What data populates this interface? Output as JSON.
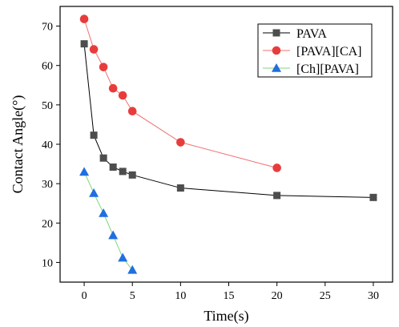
{
  "chart_data": {
    "type": "line",
    "xlabel": "Time(s)",
    "ylabel": "Contact Angle(°)",
    "xlim": [
      -2.5,
      32
    ],
    "ylim": [
      5,
      75
    ],
    "xticks": [
      0,
      5,
      10,
      15,
      20,
      25,
      30
    ],
    "yticks": [
      10,
      20,
      30,
      40,
      50,
      60,
      70
    ],
    "legend_position": "top-right",
    "series": [
      {
        "name": "PAVA",
        "marker": "square",
        "color": "#4d4d4d",
        "line_color": "#000000",
        "x": [
          0,
          1,
          2,
          3,
          4,
          5,
          10,
          20,
          30
        ],
        "y": [
          65.5,
          42.3,
          36.5,
          34.2,
          33.1,
          32.2,
          28.9,
          27.0,
          26.5
        ]
      },
      {
        "name": "[PAVA][CA]",
        "marker": "circle",
        "color": "#e83c3c",
        "line_color": "#f07070",
        "x": [
          0,
          1,
          2,
          3,
          4,
          5,
          10,
          20
        ],
        "y": [
          71.8,
          64.1,
          59.6,
          54.2,
          52.4,
          48.4,
          40.5,
          34.0
        ]
      },
      {
        "name": "[Ch][PAVA]",
        "marker": "triangle",
        "color": "#1f6fe0",
        "line_color": "#7fd47f",
        "x": [
          0,
          1,
          2,
          3,
          4,
          5
        ],
        "y": [
          33.0,
          27.6,
          22.5,
          16.9,
          11.2,
          8.1
        ]
      }
    ]
  }
}
